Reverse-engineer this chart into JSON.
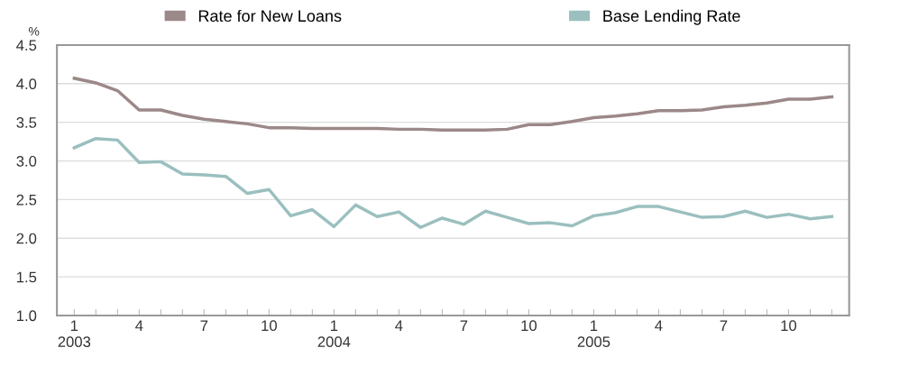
{
  "chart_data": {
    "type": "line",
    "ylabel": "%",
    "categories": [
      "1\n2003",
      null,
      null,
      "4",
      null,
      null,
      "7",
      null,
      null,
      "10",
      null,
      null,
      "1\n2004",
      null,
      null,
      "4",
      null,
      null,
      "7",
      null,
      null,
      "10",
      null,
      null,
      "1\n2005",
      null,
      null,
      "4",
      null,
      null,
      "7",
      null,
      null,
      "10",
      null,
      null
    ],
    "series": [
      {
        "name": "Rate for New Loans",
        "color": "#9c8888",
        "values": [
          4.07,
          4.01,
          3.91,
          3.66,
          3.66,
          3.59,
          3.54,
          3.51,
          3.48,
          3.43,
          3.43,
          3.42,
          3.42,
          3.42,
          3.42,
          3.41,
          3.41,
          3.4,
          3.4,
          3.4,
          3.41,
          3.47,
          3.47,
          3.51,
          3.56,
          3.58,
          3.61,
          3.65,
          3.65,
          3.66,
          3.7,
          3.72,
          3.75,
          3.8,
          3.8,
          3.83
        ]
      },
      {
        "name": "Base Lending Rate",
        "color": "#9bbfbf",
        "values": [
          3.17,
          3.29,
          3.27,
          2.98,
          2.99,
          2.83,
          2.82,
          2.8,
          2.58,
          2.63,
          2.29,
          2.37,
          2.15,
          2.43,
          2.28,
          2.34,
          2.14,
          2.26,
          2.18,
          2.35,
          2.27,
          2.19,
          2.2,
          2.16,
          2.29,
          2.33,
          2.41,
          2.41,
          2.34,
          2.27,
          2.28,
          2.35,
          2.27,
          2.31,
          2.25,
          2.28
        ]
      }
    ],
    "ylim": [
      1.0,
      4.5
    ],
    "yticks": [
      {
        "value": 1.0,
        "label": "1.0"
      },
      {
        "value": 1.5,
        "label": "1.5"
      },
      {
        "value": 2.0,
        "label": "2.0"
      },
      {
        "value": 2.5,
        "label": "2.5"
      },
      {
        "value": 3.0,
        "label": "3.0"
      },
      {
        "value": 3.5,
        "label": "3.5"
      },
      {
        "value": 4.0,
        "label": "4.0"
      },
      {
        "value": 4.5,
        "label": "4.5"
      }
    ],
    "grid": "y",
    "legend": "top",
    "marker": "none",
    "line_style": "solid"
  }
}
